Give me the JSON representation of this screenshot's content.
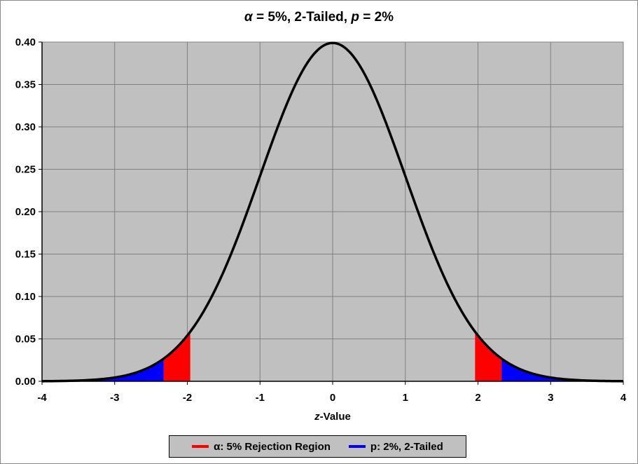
{
  "title": {
    "alpha_symbol": "α",
    "part1": " = 5%, 2-Tailed, ",
    "p_symbol": "p",
    "part2": " = 2%"
  },
  "xlabel": {
    "italic": "z",
    "rest": "-Value"
  },
  "colors": {
    "plot_background": "#c0c0c0",
    "curve": "#000000",
    "alpha_region": "#ff0000",
    "p_region": "#0000ff",
    "grid": "#808080"
  },
  "legend": [
    {
      "label": "α: 5% Rejection Region",
      "color": "#ff0000"
    },
    {
      "label": "p: 2%, 2-Tailed",
      "color": "#0000ff"
    }
  ],
  "chart_data": {
    "type": "area",
    "title": "α = 5%, 2-Tailed, p = 2%",
    "xlabel": "z-Value",
    "ylabel": "",
    "xlim": [
      -4,
      4
    ],
    "ylim": [
      0,
      0.4
    ],
    "x_ticks": [
      "-4",
      "-3",
      "-2",
      "-1",
      "0",
      "1",
      "2",
      "3",
      "4"
    ],
    "y_ticks": [
      "0.00",
      "0.05",
      "0.10",
      "0.15",
      "0.20",
      "0.25",
      "0.30",
      "0.35",
      "0.40"
    ],
    "grid": true,
    "legend_position": "bottom",
    "curve": {
      "x": [
        -4,
        -3.5,
        -3,
        -2.5,
        -2.33,
        -2,
        -1.96,
        -1.5,
        -1,
        -0.5,
        0,
        0.5,
        1,
        1.5,
        1.96,
        2,
        2.33,
        2.5,
        3,
        3.5,
        4
      ],
      "y": [
        0.0001,
        0.0009,
        0.0044,
        0.0175,
        0.0264,
        0.054,
        0.0584,
        0.1295,
        0.242,
        0.3521,
        0.3989,
        0.3521,
        0.242,
        0.1295,
        0.0584,
        0.054,
        0.0264,
        0.0175,
        0.0044,
        0.0009,
        0.0001
      ]
    },
    "regions": [
      {
        "name": "α: 5% Rejection Region",
        "color": "#ff0000",
        "intervals": [
          [
            -1.96,
            -2.326
          ],
          [
            1.96,
            2.326
          ]
        ]
      },
      {
        "name": "p: 2%, 2-Tailed",
        "color": "#0000ff",
        "intervals": [
          [
            -4,
            -2.326
          ],
          [
            2.326,
            4
          ]
        ]
      }
    ]
  }
}
